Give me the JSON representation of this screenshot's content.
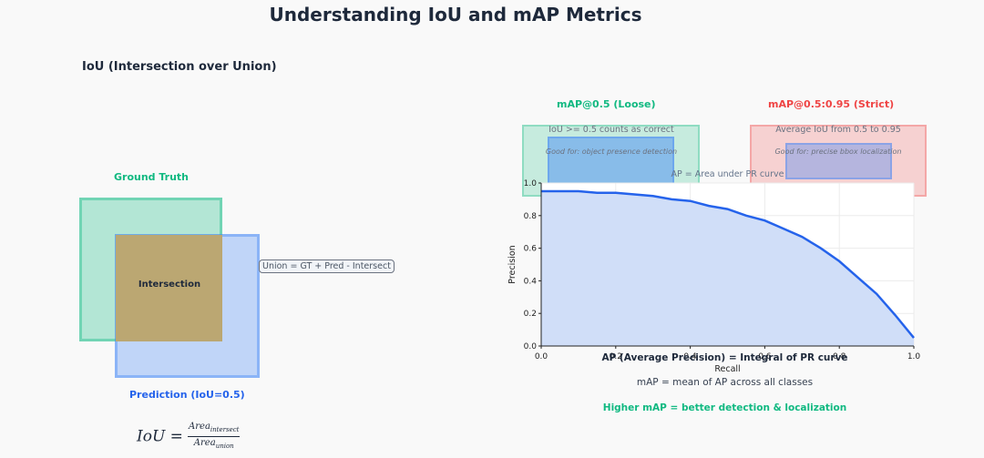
{
  "title": "Understanding IoU and mAP Metrics",
  "iou_section": {
    "heading": "IoU (Intersection over Union)",
    "ground_truth_label": "Ground Truth",
    "prediction_label": "Prediction (IoU=0.5)",
    "intersection_label": "Intersection",
    "union_callout": "Union = GT + Pred - Intersect",
    "formula": {
      "lhs": "IoU =",
      "num": "Area",
      "num_sub": "intersect",
      "den": "Area",
      "den_sub": "union"
    }
  },
  "map_section": {
    "loose": {
      "title": "mAP@0.5 (Loose)",
      "desc": "IoU >= 0.5 counts as correct",
      "good_for": "Good for: object presence detection"
    },
    "strict": {
      "title": "mAP@0.5:0.95 (Strict)",
      "desc": "Average IoU from 0.5 to 0.95",
      "good_for": "Good for: precise bbox localization"
    },
    "ap_note": "AP = Area under PR curve",
    "ap_definition": "AP (Average Precision) = Integral of PR curve",
    "map_definition": "mAP = mean of AP across all classes",
    "conclusion": "Higher mAP = better detection & localization"
  },
  "colors": {
    "ground_truth": "#10b981",
    "prediction": "#2563eb",
    "strict": "#ef4444",
    "curve": "#2563eb",
    "curve_fill": "#d0def8"
  },
  "chart_data": {
    "type": "area",
    "title": "",
    "xlabel": "Recall",
    "ylabel": "Precision",
    "xlim": [
      0.0,
      1.0
    ],
    "ylim": [
      0.0,
      1.0
    ],
    "x_ticks": [
      "0.0",
      "0.2",
      "0.4",
      "0.6",
      "0.8",
      "1.0"
    ],
    "y_ticks": [
      "0.0",
      "0.2",
      "0.4",
      "0.6",
      "0.8",
      "1.0"
    ],
    "grid": true,
    "series": [
      {
        "x": [
          0.0,
          0.05,
          0.1,
          0.15,
          0.2,
          0.25,
          0.3,
          0.35,
          0.4,
          0.45,
          0.5,
          0.55,
          0.6,
          0.65,
          0.7,
          0.75,
          0.8,
          0.85,
          0.9,
          0.95,
          1.0
        ],
        "y": [
          0.95,
          0.95,
          0.95,
          0.94,
          0.94,
          0.93,
          0.92,
          0.9,
          0.89,
          0.86,
          0.84,
          0.8,
          0.77,
          0.72,
          0.67,
          0.6,
          0.52,
          0.42,
          0.32,
          0.19,
          0.05
        ]
      }
    ]
  }
}
